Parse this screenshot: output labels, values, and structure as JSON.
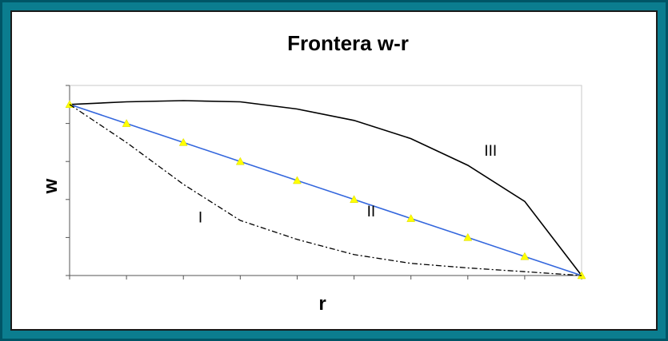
{
  "chart_data": {
    "type": "line",
    "title": "Frontera w-r",
    "xlabel": "r",
    "ylabel": "w",
    "xlim": [
      0,
      9
    ],
    "ylim": [
      0,
      5
    ],
    "x_tick_count": 9,
    "y_tick_count": 5,
    "grid": false,
    "legend": "none",
    "series": [
      {
        "key": "concave",
        "style": "solid",
        "color": "#000000",
        "x": [
          0,
          1,
          2,
          3,
          4,
          5,
          6,
          7,
          8,
          9
        ],
        "y": [
          4.5,
          4.57,
          4.6,
          4.57,
          4.38,
          4.08,
          3.6,
          2.9,
          1.95,
          0
        ]
      },
      {
        "key": "linear",
        "style": "solid-markers",
        "color": "#3366dd",
        "marker_color": "#ffff00",
        "marker": "triangle",
        "x": [
          0,
          1,
          2,
          3,
          4,
          5,
          6,
          7,
          8,
          9
        ],
        "y": [
          4.5,
          4.0,
          3.5,
          3.0,
          2.5,
          2.0,
          1.5,
          1.0,
          0.5,
          0
        ]
      },
      {
        "key": "convex",
        "style": "dash-dot",
        "color": "#000000",
        "x": [
          0,
          1,
          2,
          3,
          4,
          5,
          6,
          7,
          8,
          9
        ],
        "y": [
          4.5,
          3.5,
          2.4,
          1.45,
          0.95,
          0.55,
          0.32,
          0.2,
          0.1,
          0
        ]
      }
    ],
    "annotations": [
      {
        "text": "I",
        "x": 2.3,
        "y": 1.4
      },
      {
        "text": "II",
        "x": 5.3,
        "y": 1.55
      },
      {
        "text": "III",
        "x": 7.4,
        "y": 3.15
      }
    ]
  }
}
